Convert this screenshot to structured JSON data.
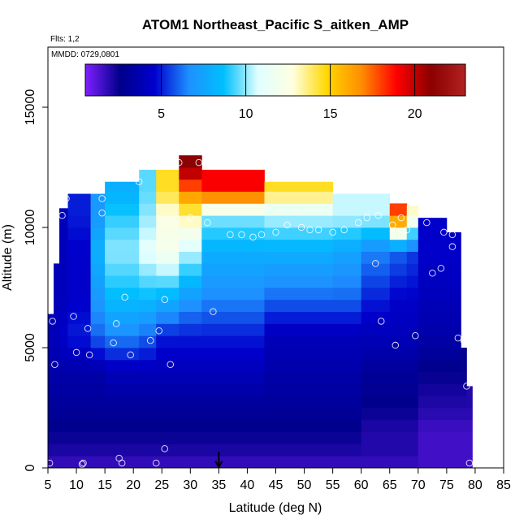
{
  "chart_data": {
    "type": "heatmap",
    "title": "ATOM1 Northeast_Pacific S_aitken_AMP",
    "subtitle_lines": [
      "Flts: 1,2",
      "MMDD: 0729,0801"
    ],
    "xlabel": "Latitude (deg N)",
    "ylabel": "Altitude (m)",
    "xlim": [
      5,
      85
    ],
    "ylim": [
      0,
      17500
    ],
    "x_ticks": [
      5,
      10,
      15,
      20,
      25,
      30,
      35,
      40,
      45,
      50,
      55,
      60,
      65,
      70,
      75,
      80,
      85
    ],
    "y_ticks": [
      0,
      5000,
      10000,
      15000
    ],
    "colorbar": {
      "range": [
        0.5,
        23
      ],
      "ticks": [
        5,
        10,
        15,
        20
      ],
      "placement": "top inside plot",
      "colors": [
        "#7f1fff",
        "#00008b",
        "#0000cd",
        "#1e90ff",
        "#00bfff",
        "#e0ffff",
        "#ffffe0",
        "#ffd700",
        "#ff8c00",
        "#ff0000",
        "#8b0000",
        "#b22222"
      ]
    },
    "columns": [
      {
        "x": [
          5.0,
          6.0
        ],
        "top": 6400,
        "vals": {
          "0": 1.5,
          "500": 2.0,
          "1500": 2.5,
          "2500": 3.0,
          "4000": 3.5,
          "5500": 4.0
        }
      },
      {
        "x": [
          6.0,
          7.0
        ],
        "top": 8500,
        "vals": {
          "0": 1.5,
          "500": 2.0,
          "1500": 2.5,
          "2500": 3.0,
          "4000": 3.5,
          "5500": 4.0,
          "7000": 4.0
        }
      },
      {
        "x": [
          7.0,
          8.5
        ],
        "top": 10800,
        "vals": {
          "0": 1.5,
          "500": 2.0,
          "1500": 2.5,
          "2500": 3.0,
          "4000": 3.5,
          "5500": 4.5,
          "7000": 4.0,
          "9000": 4.0
        }
      },
      {
        "x": [
          8.5,
          12.5
        ],
        "top": 11400,
        "vals": {
          "0": 1.5,
          "500": 2.0,
          "1500": 2.5,
          "2500": 3.0,
          "4000": 3.5,
          "5500": 5.0,
          "7000": 4.5,
          "9000": 4.5,
          "10500": 5.0
        }
      },
      {
        "x": [
          12.5,
          15.0
        ],
        "top": 11400,
        "vals": {
          "0": 1.5,
          "500": 2.0,
          "1500": 2.5,
          "2500": 3.0,
          "4000": 3.5,
          "5500": 6.0,
          "7000": 7.0,
          "9000": 8.0,
          "10500": 7.0
        }
      },
      {
        "x": [
          15.0,
          21.0
        ],
        "top": 11900,
        "vals": {
          "0": 1.5,
          "500": 2.0,
          "1500": 2.5,
          "2500": 3.0,
          "4000": 4.0,
          "5500": 6.5,
          "7000": 8.5,
          "9000": 10.0,
          "10500": 9.0,
          "11500": 8.0
        }
      },
      {
        "x": [
          21.0,
          24.0
        ],
        "top": 12400,
        "vals": {
          "0": 1.5,
          "500": 2.0,
          "1500": 2.5,
          "2500": 3.0,
          "4000": 4.0,
          "5500": 6.0,
          "7000": 8.5,
          "9000": 11.0,
          "10500": 10.0,
          "11500": 9.5
        }
      },
      {
        "x": [
          24.0,
          28.0
        ],
        "top": 12400,
        "vals": {
          "0": 1.5,
          "500": 2.0,
          "1500": 2.5,
          "2500": 3.0,
          "4000": 4.0,
          "5500": 5.0,
          "7000": 8.0,
          "9000": 12.0,
          "10500": 12.5,
          "11500": 14.5
        }
      },
      {
        "x": [
          28.0,
          32.0
        ],
        "top": 13000,
        "vals": {
          "0": 1.5,
          "500": 2.0,
          "1500": 2.5,
          "2500": 3.0,
          "4000": 4.0,
          "5500": 5.0,
          "7000": 7.0,
          "9000": 10.5,
          "10500": 13.5,
          "11500": 17.0,
          "12500": 21.0
        }
      },
      {
        "x": [
          32.0,
          43.0
        ],
        "top": 12400,
        "vals": {
          "0": 1.5,
          "500": 2.0,
          "1500": 2.5,
          "2500": 3.0,
          "4000": 4.0,
          "5500": 5.0,
          "7000": 6.5,
          "9000": 8.0,
          "10500": 10.0,
          "11500": 19.0
        }
      },
      {
        "x": [
          43.0,
          55.0
        ],
        "top": 11900,
        "vals": {
          "0": 1.5,
          "500": 2.0,
          "1500": 2.5,
          "2500": 3.0,
          "4000": 3.5,
          "5500": 4.0,
          "7000": 6.0,
          "9000": 8.0,
          "10500": 10.5,
          "11500": 14.5
        }
      },
      {
        "x": [
          55.0,
          60.0
        ],
        "top": 11400,
        "vals": {
          "0": 1.5,
          "500": 2.0,
          "1500": 2.5,
          "2500": 3.0,
          "4000": 3.5,
          "5500": 4.0,
          "7000": 6.0,
          "9000": 7.5,
          "10500": 10.5
        }
      },
      {
        "x": [
          60.0,
          65.0
        ],
        "top": 11400,
        "vals": {
          "0": 1.5,
          "500": 2.0,
          "1500": 2.0,
          "2500": 2.5,
          "4000": 3.0,
          "5500": 4.0,
          "7000": 5.0,
          "9000": 6.5,
          "10500": 10.5
        }
      },
      {
        "x": [
          65.0,
          68.0
        ],
        "top": 11000,
        "vals": {
          "0": 1.5,
          "500": 2.0,
          "1500": 2.0,
          "2500": 2.5,
          "4000": 3.0,
          "5500": 4.0,
          "7000": 4.5,
          "9000": 6.0,
          "10500": 18.0
        }
      },
      {
        "x": [
          68.0,
          70.0
        ],
        "top": 10900,
        "vals": {
          "0": 1.5,
          "500": 2.0,
          "1500": 2.0,
          "2500": 2.5,
          "4000": 3.0,
          "5500": 4.0,
          "7000": 4.5,
          "9000": 5.5,
          "10500": 13.0
        }
      },
      {
        "x": [
          70.0,
          75.0
        ],
        "top": 10400,
        "vals": {
          "0": 1.5,
          "500": 1.5,
          "1500": 1.5,
          "2500": 2.0,
          "4000": 2.5,
          "5500": 3.5,
          "7000": 4.0,
          "9000": 4.5
        }
      },
      {
        "x": [
          75.0,
          77.5
        ],
        "top": 9800,
        "vals": {
          "0": 1.5,
          "500": 1.5,
          "1500": 1.5,
          "2500": 2.0,
          "4000": 2.5,
          "5500": 3.5,
          "7000": 4.0,
          "9000": 4.5
        }
      },
      {
        "x": [
          77.5,
          78.5
        ],
        "top": 5000,
        "vals": {
          "0": 1.5,
          "500": 1.5,
          "1500": 1.5,
          "2500": 2.0,
          "4000": 2.5
        }
      },
      {
        "x": [
          78.5,
          79.5
        ],
        "top": 3400,
        "vals": {
          "0": 1.5,
          "500": 1.5,
          "1500": 1.5,
          "2500": 2.0
        }
      }
    ],
    "points": [
      [
        5.3,
        200
      ],
      [
        5.8,
        6100
      ],
      [
        6.2,
        4300
      ],
      [
        7.5,
        10500
      ],
      [
        8.2,
        11200
      ],
      [
        9.5,
        6300
      ],
      [
        10.0,
        4800
      ],
      [
        11.0,
        150
      ],
      [
        11.2,
        200
      ],
      [
        12.0,
        5800
      ],
      [
        12.3,
        4700
      ],
      [
        14.5,
        11200
      ],
      [
        14.5,
        10600
      ],
      [
        17.0,
        6000
      ],
      [
        17.5,
        400
      ],
      [
        18.0,
        200
      ],
      [
        16.5,
        5200
      ],
      [
        18.5,
        7100
      ],
      [
        19.5,
        4700
      ],
      [
        21.0,
        11900
      ],
      [
        23.0,
        5300
      ],
      [
        24.0,
        200
      ],
      [
        24.5,
        5700
      ],
      [
        25.5,
        7000
      ],
      [
        25.5,
        800
      ],
      [
        26.5,
        4300
      ],
      [
        28.0,
        12700
      ],
      [
        30.0,
        10400
      ],
      [
        31.5,
        12700
      ],
      [
        33.0,
        10200
      ],
      [
        34.0,
        6500
      ],
      [
        37.0,
        9700
      ],
      [
        39.0,
        9700
      ],
      [
        41.0,
        9600
      ],
      [
        42.5,
        9700
      ],
      [
        45.0,
        9800
      ],
      [
        47.0,
        10100
      ],
      [
        49.5,
        10000
      ],
      [
        51.0,
        9900
      ],
      [
        52.5,
        9900
      ],
      [
        55.0,
        9800
      ],
      [
        57.0,
        9900
      ],
      [
        59.5,
        10200
      ],
      [
        61.0,
        10400
      ],
      [
        62.5,
        8500
      ],
      [
        63.0,
        10500
      ],
      [
        63.5,
        6100
      ],
      [
        65.5,
        10100
      ],
      [
        66.0,
        5100
      ],
      [
        67.0,
        10400
      ],
      [
        68.0,
        9900
      ],
      [
        69.5,
        5500
      ],
      [
        71.5,
        10200
      ],
      [
        72.5,
        8100
      ],
      [
        74.0,
        8300
      ],
      [
        74.5,
        9800
      ],
      [
        76.0,
        9200
      ],
      [
        76.0,
        9700
      ],
      [
        77.0,
        5400
      ],
      [
        78.0,
        5300
      ],
      [
        78.5,
        3400
      ],
      [
        79.0,
        200
      ]
    ],
    "marker": {
      "x": 35,
      "symbol": "arrow-down"
    }
  }
}
